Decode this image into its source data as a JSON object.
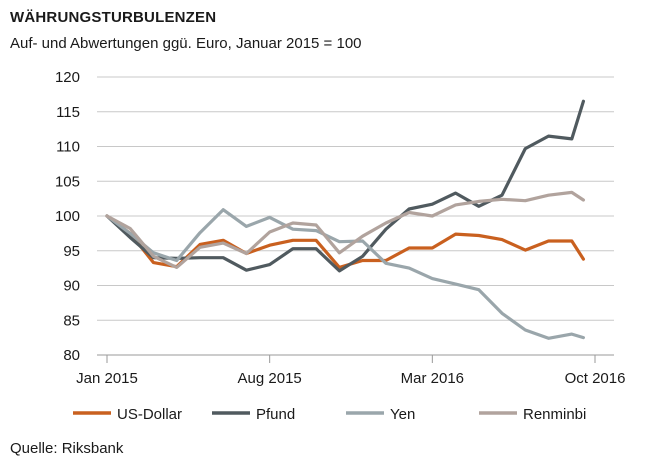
{
  "chart_data": {
    "type": "line",
    "title": "WÄHRUNGSTURBULENZEN",
    "subtitle": "Auf- und Abwertungen ggü. Euro, Januar 2015 = 100",
    "source": "Quelle: Riksbank",
    "ylim": [
      80,
      120
    ],
    "yticks": [
      80,
      85,
      90,
      95,
      100,
      105,
      110,
      115,
      120
    ],
    "xlim": [
      0,
      21
    ],
    "xticks": [
      {
        "label": "Jan 2015",
        "x": 0
      },
      {
        "label": "Aug 2015",
        "x": 7
      },
      {
        "label": "Mar 2016",
        "x": 14
      },
      {
        "label": "Oct 2016",
        "x": 21
      }
    ],
    "grid": true,
    "legend_position": "bottom",
    "series": [
      {
        "name": "US-Dollar",
        "color": "#c9601f",
        "x": [
          0,
          1,
          2,
          3,
          4,
          5,
          6,
          7,
          8,
          9,
          10,
          11,
          12,
          13,
          14,
          15,
          16,
          17,
          18,
          19,
          20,
          20.5
        ],
        "values": [
          100,
          97.5,
          93.3,
          92.7,
          95.9,
          96.5,
          94.6,
          95.8,
          96.5,
          96.5,
          92.6,
          93.6,
          93.6,
          95.4,
          95.4,
          97.4,
          97.2,
          96.6,
          95.1,
          96.4,
          96.4,
          93.8
        ]
      },
      {
        "name": "Pfund",
        "color": "#505a5f",
        "x": [
          0,
          1,
          2,
          3,
          4,
          5,
          6,
          7,
          8,
          9,
          10,
          11,
          12,
          13,
          14,
          15,
          16,
          17,
          18,
          19,
          20,
          20.5
        ],
        "values": [
          100,
          96.9,
          94,
          93.9,
          94,
          94,
          92.2,
          93,
          95.3,
          95.3,
          92.1,
          94.2,
          98.1,
          101,
          101.7,
          103.3,
          101.4,
          103,
          109.7,
          111.5,
          111.1,
          116.5
        ]
      },
      {
        "name": "Yen",
        "color": "#9aa6ab",
        "x": [
          0,
          1,
          2,
          3,
          4,
          5,
          6,
          7,
          8,
          9,
          10,
          11,
          12,
          13,
          14,
          15,
          16,
          17,
          18,
          19,
          20,
          20.5
        ],
        "values": [
          100,
          97.5,
          94.7,
          93.6,
          97.6,
          100.9,
          98.5,
          99.8,
          98.1,
          97.9,
          96.3,
          96.4,
          93.2,
          92.5,
          91,
          90.2,
          89.4,
          86,
          83.6,
          82.4,
          83,
          82.5
        ]
      },
      {
        "name": "Renminbi",
        "color": "#b1a39d",
        "x": [
          0,
          1,
          2,
          3,
          4,
          5,
          6,
          7,
          8,
          9,
          10,
          11,
          12,
          13,
          14,
          15,
          16,
          17,
          18,
          19,
          20,
          20.5
        ],
        "values": [
          100,
          98.2,
          94.2,
          92.6,
          95.5,
          96.1,
          94.6,
          97.7,
          99,
          98.7,
          94.7,
          97.1,
          99,
          100.5,
          100,
          101.6,
          102.1,
          102.4,
          102.2,
          103,
          103.4,
          102.3
        ]
      }
    ]
  }
}
